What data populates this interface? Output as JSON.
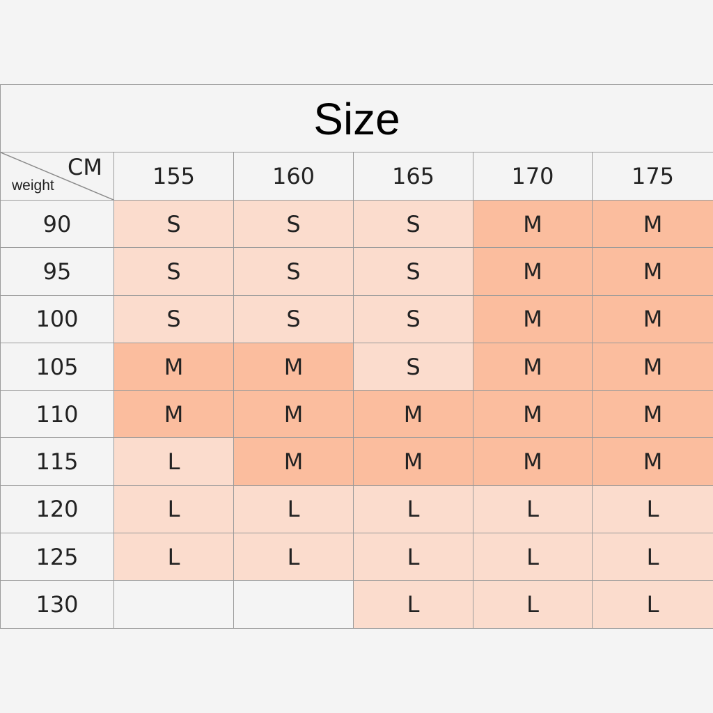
{
  "title": "Size",
  "corner": {
    "column_label": "CM",
    "row_label": "weight"
  },
  "heights": [
    "155",
    "160",
    "165",
    "170",
    "175"
  ],
  "rows": [
    {
      "weight": "90",
      "sizes": [
        "S",
        "S",
        "S",
        "M",
        "M"
      ]
    },
    {
      "weight": "95",
      "sizes": [
        "S",
        "S",
        "S",
        "M",
        "M"
      ]
    },
    {
      "weight": "100",
      "sizes": [
        "S",
        "S",
        "S",
        "M",
        "M"
      ]
    },
    {
      "weight": "105",
      "sizes": [
        "M",
        "M",
        "S",
        "M",
        "M"
      ]
    },
    {
      "weight": "110",
      "sizes": [
        "M",
        "M",
        "M",
        "M",
        "M"
      ]
    },
    {
      "weight": "115",
      "sizes": [
        "L",
        "M",
        "M",
        "M",
        "M"
      ]
    },
    {
      "weight": "120",
      "sizes": [
        "L",
        "L",
        "L",
        "L",
        "L"
      ]
    },
    {
      "weight": "125",
      "sizes": [
        "L",
        "L",
        "L",
        "L",
        "L"
      ]
    },
    {
      "weight": "130",
      "sizes": [
        "",
        "",
        "L",
        "L",
        "L"
      ]
    }
  ],
  "colors": {
    "S": "#fbdccd",
    "M": "#fbbd9e",
    "L": "#fbdccd",
    "empty": "#f4f4f4"
  }
}
